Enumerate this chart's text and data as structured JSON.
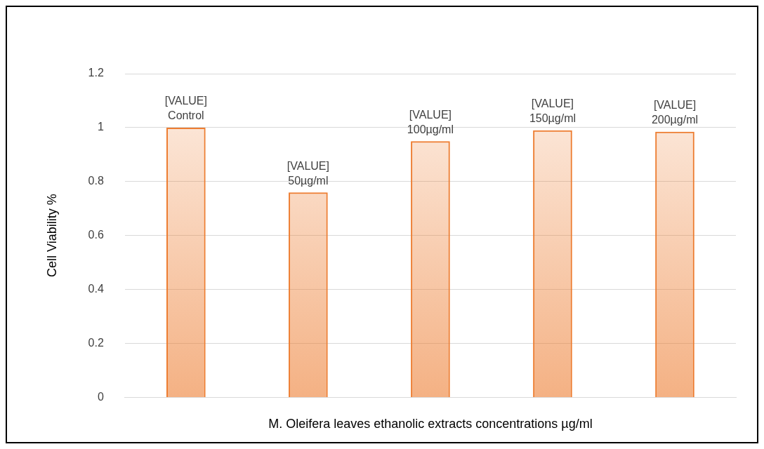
{
  "chart_data": {
    "type": "bar",
    "xlabel": "M. Oleifera leaves ethanolic extracts concentrations µg/ml",
    "ylabel": "Cell Viability %",
    "categories": [
      "Control",
      "50µg/ml",
      "100µg/ml",
      "150µg/ml",
      "200µg/ml"
    ],
    "values": [
      1.0,
      0.76,
      0.95,
      0.99,
      0.985
    ],
    "value_labels": [
      "[VALUE]",
      "[VALUE]",
      "[VALUE]",
      "[VALUE]",
      "[VALUE]"
    ],
    "color": "#ed7d31",
    "ylim": [
      0,
      1.2
    ],
    "yticks": [
      0,
      0.2,
      0.4,
      0.6,
      0.8,
      1,
      1.2
    ],
    "grid": "y",
    "legend": false,
    "tick_labels": "y"
  }
}
